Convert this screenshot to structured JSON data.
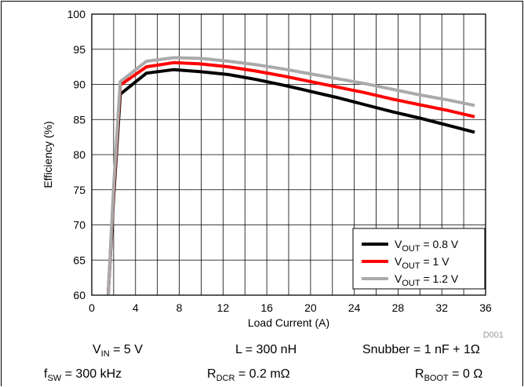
{
  "chart_data": {
    "type": "line",
    "xlabel": "Load Current (A)",
    "ylabel": "Efficiency (%)",
    "xlim": [
      0,
      36
    ],
    "ylim": [
      60,
      100
    ],
    "xticks": [
      "0",
      "4",
      "8",
      "12",
      "16",
      "20",
      "24",
      "28",
      "32",
      "36"
    ],
    "yticks": [
      "60",
      "65",
      "70",
      "75",
      "80",
      "85",
      "90",
      "95",
      "100"
    ],
    "grid": true,
    "legend_position": "bottom-right",
    "series": [
      {
        "name": "V_OUT = 0.8 V",
        "name_main": "V",
        "name_sub": "OUT",
        "name_rest": " = 0.8 V",
        "color": "#000000",
        "x": [
          1.5,
          2.0,
          2.6,
          5.0,
          7.5,
          10.0,
          12.5,
          15.0,
          17.5,
          20.0,
          22.5,
          25.0,
          27.5,
          30.0,
          32.5,
          35.0
        ],
        "y": [
          60,
          74,
          88.6,
          91.6,
          92.1,
          91.8,
          91.4,
          90.7,
          89.9,
          89.0,
          88.1,
          87.1,
          86.1,
          85.2,
          84.2,
          83.2
        ]
      },
      {
        "name": "V_OUT = 1 V",
        "name_main": "V",
        "name_sub": "OUT",
        "name_rest": " = 1 V",
        "color": "#ff0000",
        "x": [
          1.5,
          2.0,
          2.6,
          5.0,
          7.5,
          10.0,
          12.5,
          15.0,
          17.5,
          20.0,
          22.5,
          25.0,
          27.5,
          30.0,
          32.5,
          35.0
        ],
        "y": [
          60,
          75,
          89.9,
          92.5,
          93.1,
          92.9,
          92.5,
          91.9,
          91.2,
          90.4,
          89.6,
          88.8,
          87.9,
          87.1,
          86.3,
          85.4
        ]
      },
      {
        "name": "V_OUT = 1.2 V",
        "name_main": "V",
        "name_sub": "OUT",
        "name_rest": " = 1.2 V",
        "color": "#aaaaaa",
        "x": [
          1.5,
          2.0,
          2.6,
          5.0,
          7.5,
          10.0,
          12.5,
          15.0,
          17.5,
          20.0,
          22.5,
          25.0,
          27.5,
          30.0,
          32.5,
          35.0
        ],
        "y": [
          60,
          75.5,
          90.4,
          93.3,
          93.8,
          93.7,
          93.3,
          92.8,
          92.2,
          91.5,
          90.8,
          90.1,
          89.3,
          88.5,
          87.8,
          87.0
        ]
      }
    ],
    "reference_id": "D001"
  },
  "conditions": {
    "vin_main": "V",
    "vin_sub": "IN",
    "vin_rest": " = 5 V",
    "l_text": "L = 300 nH",
    "snubber_text": "Snubber = 1 nF + 1Ω",
    "fsw_main": "f",
    "fsw_sub": "SW",
    "fsw_rest": " = 300 kHz",
    "rdcr_main": "R",
    "rdcr_sub": "DCR",
    "rdcr_rest": " = 0.2 mΩ",
    "rboot_main": "R",
    "rboot_sub": "BOOT",
    "rboot_rest": " = 0 Ω"
  }
}
